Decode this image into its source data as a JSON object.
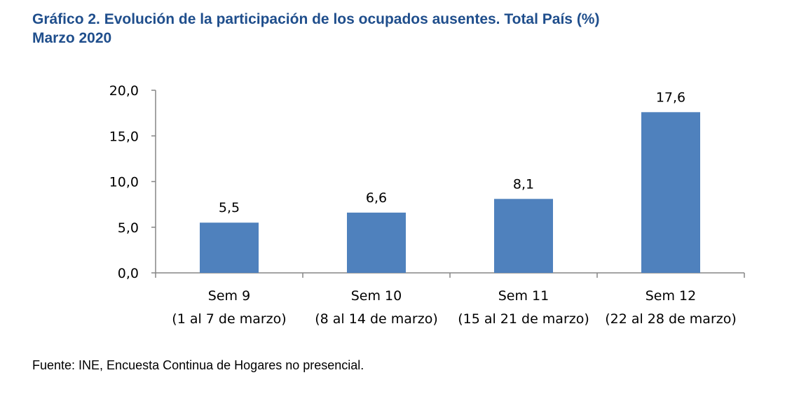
{
  "title": {
    "line1": "Gráfico 2. Evolución de la participación de los ocupados ausentes. Total País (%)",
    "line2": "Marzo 2020"
  },
  "source": "Fuente: INE, Encuesta Continua de Hogares no presencial.",
  "chart_data": {
    "type": "bar",
    "title": "Gráfico 2. Evolución de la participación de los ocupados ausentes. Total País (%)",
    "subtitle": "Marzo 2020",
    "categories": [
      [
        "Sem 9",
        "(1 al 7 de marzo)"
      ],
      [
        "Sem 10",
        "(8 al 14 de marzo)"
      ],
      [
        "Sem 11",
        "(15 al 21 de marzo)"
      ],
      [
        "Sem 12",
        "(22 al 28 de marzo)"
      ]
    ],
    "values": [
      5.5,
      6.6,
      8.1,
      17.6
    ],
    "data_labels": [
      "5,5",
      "6,6",
      "8,1",
      "17,6"
    ],
    "yticks": [
      "0,0",
      "5,0",
      "10,0",
      "15,0",
      "20,0"
    ],
    "ylim": [
      0,
      20
    ],
    "grid": false,
    "legend": "none",
    "bar_color": "#4f81bd"
  }
}
